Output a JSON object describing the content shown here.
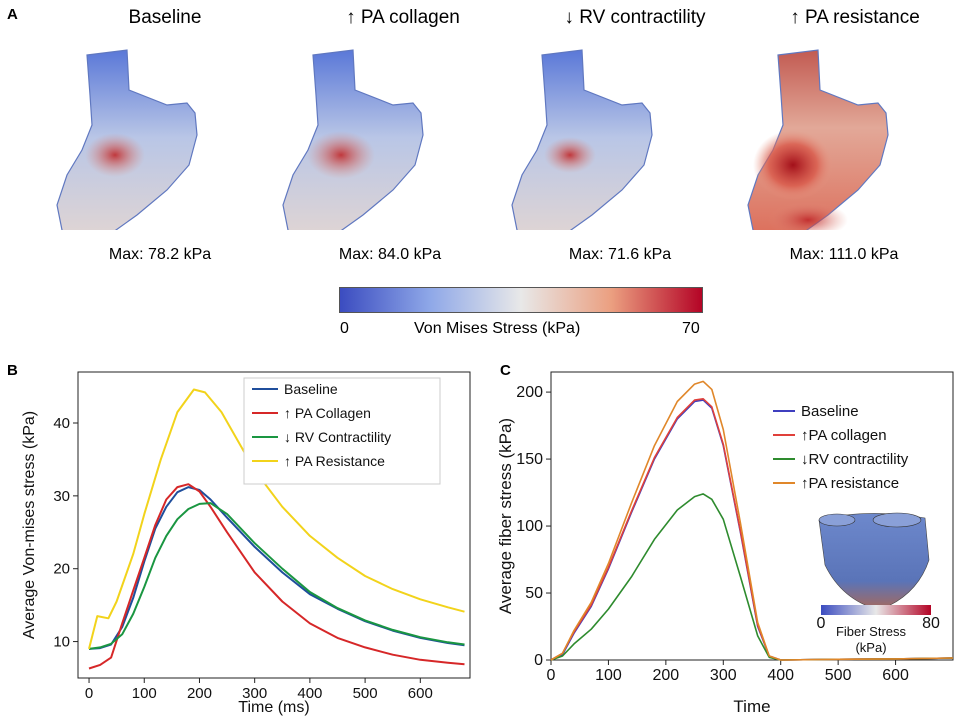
{
  "panel_labels": {
    "a": "A",
    "b": "B",
    "c": "C"
  },
  "panel_a": {
    "scenarios": [
      {
        "title": "Baseline",
        "max": "Max: 78.2 kPa",
        "hot": 0.15
      },
      {
        "title": "↑ PA collagen",
        "max": "Max: 84.0 kPa",
        "hot": 0.2
      },
      {
        "title": "↓ RV contractility",
        "max": "Max: 71.6 kPa",
        "hot": 0.12
      },
      {
        "title": "↑ PA resistance",
        "max": "Max: 111.0 kPa",
        "hot": 0.7
      }
    ],
    "colorbar": {
      "min": "0",
      "max": "70",
      "label": "Von Mises Stress (kPa)",
      "low_color": "#3b4cc0",
      "mid_color": "#e8e8e8",
      "high_color": "#b40426"
    }
  },
  "chart_data": [
    {
      "type": "line",
      "panel": "B",
      "xlabel": "Time (ms)",
      "ylabel": "Average Von-mises stress (kPa)",
      "xlim": [
        -20,
        690
      ],
      "ylim": [
        5,
        47
      ],
      "xticks": [
        "0",
        "100",
        "200",
        "300",
        "400",
        "500",
        "600"
      ],
      "yticks": [
        "10",
        "20",
        "30",
        "40"
      ],
      "legend_position": "top-right",
      "series": [
        {
          "name": "Baseline",
          "legend": "Baseline",
          "color": "#1f4e9c",
          "x": [
            0,
            20,
            40,
            60,
            80,
            100,
            120,
            140,
            160,
            180,
            200,
            220,
            250,
            300,
            350,
            400,
            450,
            500,
            550,
            600,
            650,
            680
          ],
          "y": [
            9,
            9.1,
            9.6,
            12,
            16,
            21,
            25.5,
            28.5,
            30.5,
            31.2,
            30.8,
            29.5,
            27,
            23,
            19.5,
            16.5,
            14.5,
            12.8,
            11.5,
            10.5,
            9.8,
            9.5
          ]
        },
        {
          "name": "PA Collagen",
          "legend": "↑ PA Collagen",
          "color": "#d62728",
          "x": [
            0,
            20,
            40,
            60,
            80,
            100,
            120,
            140,
            160,
            180,
            200,
            220,
            250,
            300,
            350,
            400,
            450,
            500,
            550,
            600,
            650,
            680
          ],
          "y": [
            6.3,
            6.8,
            7.8,
            12.5,
            17,
            21.5,
            26,
            29.5,
            31.2,
            31.6,
            30.6,
            28.5,
            25,
            19.5,
            15.5,
            12.5,
            10.5,
            9.2,
            8.2,
            7.5,
            7.1,
            6.9
          ]
        },
        {
          "name": "RV Contractility",
          "legend": "↓ RV Contractility",
          "color": "#1a9641",
          "x": [
            0,
            20,
            40,
            60,
            80,
            100,
            120,
            140,
            160,
            180,
            200,
            220,
            250,
            300,
            350,
            400,
            450,
            500,
            550,
            600,
            650,
            680
          ],
          "y": [
            9,
            9.2,
            9.7,
            11,
            13.8,
            17.5,
            21.5,
            24.5,
            26.8,
            28.2,
            28.9,
            29,
            27.5,
            23.5,
            20,
            16.8,
            14.6,
            12.9,
            11.6,
            10.6,
            9.9,
            9.6
          ]
        },
        {
          "name": "PA Resistance",
          "legend": "↑ PA Resistance",
          "color": "#f2d31b",
          "x": [
            0,
            15,
            35,
            50,
            80,
            100,
            130,
            160,
            190,
            210,
            240,
            270,
            300,
            350,
            400,
            450,
            500,
            550,
            600,
            650,
            680
          ],
          "y": [
            9,
            13.5,
            13.2,
            15.5,
            22,
            27.5,
            35,
            41.5,
            44.6,
            44.2,
            41.5,
            37.5,
            33.5,
            28.5,
            24.5,
            21.5,
            19,
            17.2,
            15.8,
            14.7,
            14.1
          ]
        }
      ]
    },
    {
      "type": "line",
      "panel": "C",
      "xlabel": "Time",
      "ylabel": "Average fiber stress (kPa)",
      "xlim": [
        0,
        700
      ],
      "ylim": [
        0,
        215
      ],
      "xticks": [
        "0",
        "100",
        "200",
        "300",
        "400",
        "500",
        "600"
      ],
      "yticks": [
        "0",
        "50",
        "100",
        "150",
        "200"
      ],
      "legend_position": "top-right",
      "series": [
        {
          "name": "Baseline",
          "legend": "Baseline",
          "color": "#3f3fbf",
          "x": [
            0,
            20,
            40,
            70,
            100,
            140,
            180,
            220,
            250,
            265,
            280,
            300,
            330,
            360,
            380,
            400,
            500,
            600,
            700
          ],
          "y": [
            0,
            4,
            20,
            40,
            68,
            110,
            150,
            180,
            193,
            194,
            188,
            160,
            95,
            25,
            3,
            0,
            0.5,
            0.8,
            1.5
          ]
        },
        {
          "name": "PA collagen",
          "legend": "↑PA collagen",
          "color": "#e0403a",
          "x": [
            0,
            20,
            40,
            70,
            100,
            140,
            180,
            220,
            250,
            265,
            280,
            300,
            330,
            360,
            380,
            400,
            500,
            600,
            700
          ],
          "y": [
            0,
            5,
            21,
            41,
            69,
            111,
            151,
            181,
            194,
            195,
            189,
            161,
            96,
            26,
            3,
            0,
            0.5,
            0.8,
            1.5
          ]
        },
        {
          "name": "RV contractility",
          "legend": "↓RV contractility",
          "color": "#2e8b2e",
          "x": [
            0,
            20,
            40,
            70,
            100,
            140,
            180,
            220,
            250,
            265,
            280,
            300,
            330,
            360,
            380,
            400,
            500,
            600,
            700
          ],
          "y": [
            0,
            3,
            12,
            23,
            38,
            62,
            90,
            112,
            122,
            124,
            120,
            105,
            62,
            18,
            2,
            0,
            0.5,
            0.8,
            1.5
          ]
        },
        {
          "name": "PA resistance",
          "legend": "↑PA resistance",
          "color": "#e0872a",
          "x": [
            0,
            20,
            40,
            70,
            100,
            140,
            180,
            220,
            250,
            265,
            280,
            300,
            330,
            360,
            380,
            400,
            500,
            600,
            700
          ],
          "y": [
            0,
            5,
            22,
            43,
            72,
            117,
            160,
            193,
            206,
            208,
            202,
            172,
            102,
            28,
            3,
            0,
            0.5,
            0.8,
            1.5
          ]
        }
      ],
      "inset": {
        "min": "0",
        "max": "80",
        "label_line1": "Fiber Stress",
        "label_line2": "(kPa)"
      }
    }
  ]
}
